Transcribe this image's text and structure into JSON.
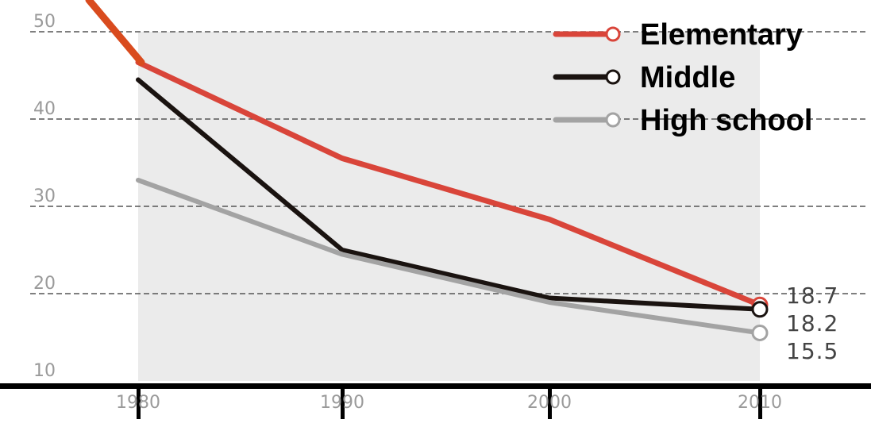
{
  "chart_data": {
    "type": "line",
    "title": "",
    "xlabel": "",
    "ylabel": "",
    "x": [
      1980,
      1990,
      2000,
      2010
    ],
    "xticklabels": [
      "1980",
      "1990",
      "2000",
      "2010"
    ],
    "yticks": [
      10,
      20,
      30,
      40,
      50
    ],
    "ylim": [
      10,
      50
    ],
    "grid": "dashed horizontal at each y tick",
    "legend_position": "top-right",
    "series": [
      {
        "name": "Elementary",
        "color": "#d9453a",
        "values": [
          46.5,
          35.5,
          28.5,
          18.7
        ]
      },
      {
        "name": "Middle",
        "color": "#1a1310",
        "values": [
          44.5,
          25.0,
          19.5,
          18.2
        ]
      },
      {
        "name": "High school",
        "color": "#a3a3a3",
        "values": [
          33.0,
          24.5,
          19.0,
          15.5
        ]
      }
    ],
    "end_labels": [
      "18.7",
      "18.2",
      "15.5"
    ]
  },
  "colors": {
    "shade": "#ebebeb",
    "grid": "#555555",
    "annotation_line": "#d94b1e",
    "axis": "#000000"
  }
}
